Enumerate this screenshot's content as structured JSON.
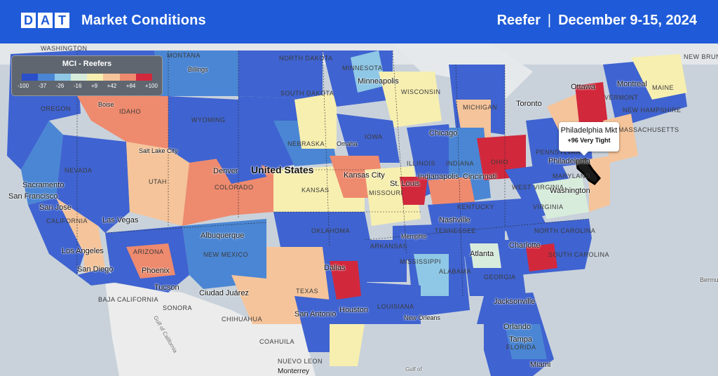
{
  "header": {
    "logo_letters": [
      "D",
      "A",
      "T"
    ],
    "title": "Market Conditions",
    "equipment": "Reefer",
    "separator": "|",
    "date_range": "December 9-15, 2024"
  },
  "legend": {
    "title": "MCI - Reefers",
    "ticks": [
      "-100",
      "-37",
      "-26",
      "-16",
      "+9",
      "+42",
      "+84",
      "+100"
    ],
    "colors": [
      "#2a4fc9",
      "#4a86d4",
      "#8fc8e6",
      "#d8ecdc",
      "#f7efb0",
      "#f5c49a",
      "#ee8a6e",
      "#d2283c"
    ]
  },
  "callout": {
    "market": "Philadelphia Mkt",
    "value": "+96 Very Tight"
  },
  "state_labels": [
    "WASHINGTON",
    "MONTANA",
    "NORTH DAKOTA",
    "MINNESOTA",
    "OREGON",
    "IDAHO",
    "SOUTH DAKOTA",
    "WYOMING",
    "WISCONSIN",
    "MICHIGAN",
    "IOWA",
    "NEBRASKA",
    "NEVADA",
    "UTAH",
    "COLORADO",
    "KANSAS",
    "ILLINOIS",
    "INDIANA",
    "OHIO",
    "PENNSYLVANIA",
    "MISSOURI",
    "WEST VIRGINIA",
    "VIRGINIA",
    "KENTUCKY",
    "MARYLAND",
    "CALIFORNIA",
    "OKLAHOMA",
    "TENNESSEE",
    "NORTH CAROLINA",
    "ARKANSAS",
    "ARIZONA",
    "NEW MEXICO",
    "SOUTH CAROLINA",
    "MISSISSIPPI",
    "ALABAMA",
    "GEORGIA",
    "TEXAS",
    "LOUISIANA",
    "FLORIDA",
    "MAINE",
    "VERMONT",
    "NEW HAMPSHIRE",
    "MASSACHUSETTS",
    "NEW BRUNSWICK",
    "BAJA CALIFORNIA",
    "SONORA",
    "CHIHUAHUA",
    "COAHUILA",
    "NUEVO LEON"
  ],
  "cities": [
    "Minneapolis",
    "Boise",
    "Billings",
    "Ottawa",
    "Montreal",
    "Toronto",
    "Chicago",
    "Omaha",
    "Salt Lake City",
    "Denver",
    "United States",
    "Kansas City",
    "Indianapolis",
    "Cincinnati",
    "St. Louis",
    "Philadelphia",
    "Washington",
    "Sacramento",
    "San Francisco",
    "San Jose",
    "Las Vegas",
    "Los Angeles",
    "San Diego",
    "Phoenix",
    "Tucson",
    "Albuquerque",
    "Nashville",
    "Memphis",
    "Atlanta",
    "Charlotte",
    "Dallas",
    "Houston",
    "San Antonio",
    "Ciudad Juárez",
    "New Orleans",
    "Jacksonville",
    "Orlando",
    "Tampa",
    "Miami",
    "Gulf of California",
    "Gulf of",
    "Bermu",
    "Monterrey"
  ]
}
